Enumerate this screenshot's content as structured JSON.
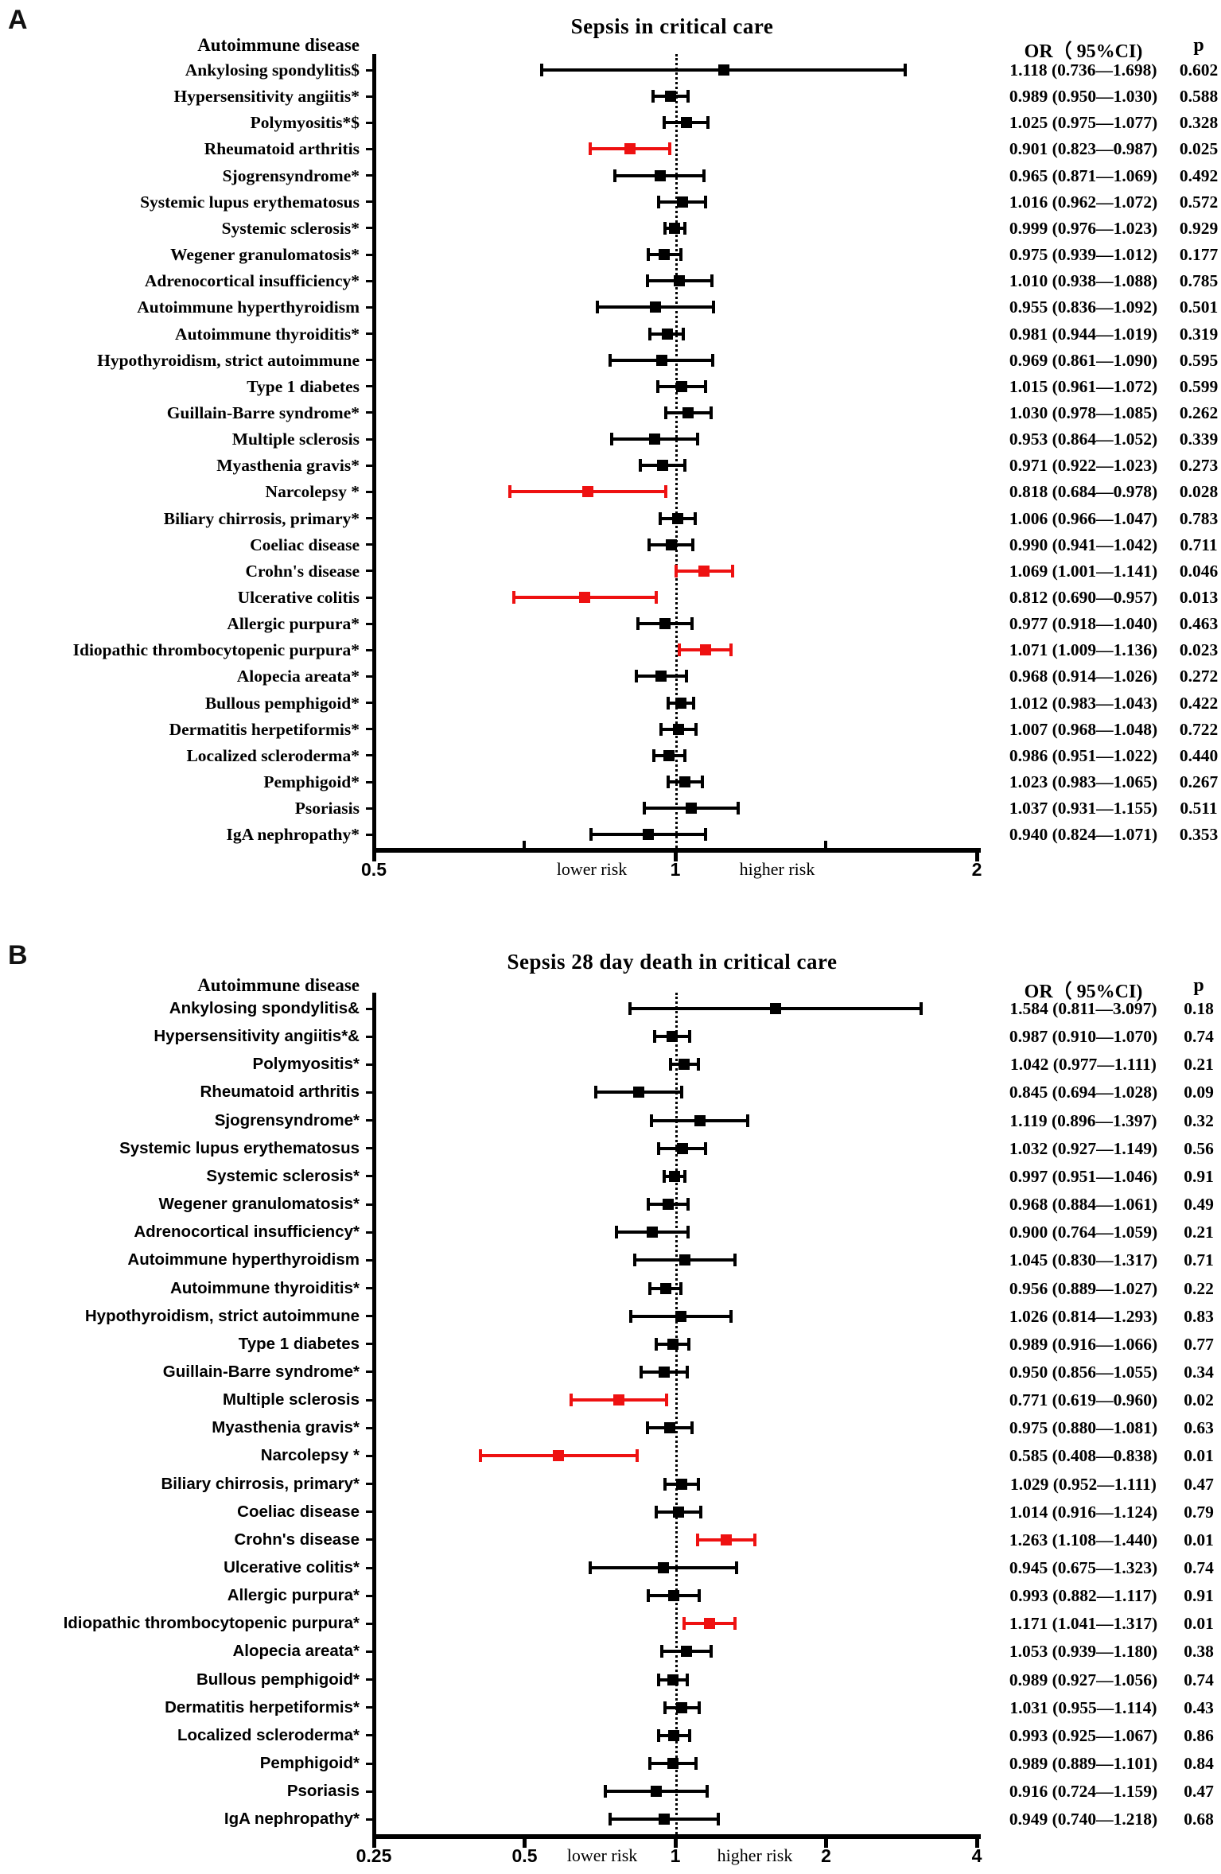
{
  "colors": {
    "normal": "#000000",
    "highlight": "#ee1111",
    "background": "#ffffff"
  },
  "chart_data": [
    {
      "type": "forest",
      "panel_letter": "A",
      "title": "Sepsis in critical care",
      "column_header": "Autoimmune disease",
      "or_header": "OR（ 95%CI)",
      "p_header": "p",
      "xscale": "log",
      "xlim": [
        0.5,
        2
      ],
      "ref_line": 1,
      "major_ticks": [
        {
          "value": 0.5,
          "label": "0.5"
        },
        {
          "value": 1,
          "label": "1"
        },
        {
          "value": 2,
          "label": "2"
        }
      ],
      "minor_ticks": [
        0.707,
        1.414
      ],
      "lower_risk_label": "lower risk",
      "higher_risk_label": "higher risk",
      "rows": [
        {
          "label": "Ankylosing spondylitis$",
          "or": 1.118,
          "lo": 0.736,
          "hi": 1.698,
          "ci": "1.118 (0.736—1.698)",
          "p": "0.602",
          "red": false
        },
        {
          "label": "Hypersensitivity angiitis*",
          "or": 0.989,
          "lo": 0.95,
          "hi": 1.03,
          "ci": "0.989 (0.950—1.030)",
          "p": "0.588",
          "red": false
        },
        {
          "label": "Polymyositis*$",
          "or": 1.025,
          "lo": 0.975,
          "hi": 1.077,
          "ci": "1.025 (0.975—1.077)",
          "p": "0.328",
          "red": false
        },
        {
          "label": "Rheumatoid arthritis",
          "or": 0.901,
          "lo": 0.823,
          "hi": 0.987,
          "ci": "0.901 (0.823—0.987)",
          "p": "0.025",
          "red": true
        },
        {
          "label": "Sjogrensyndrome*",
          "or": 0.965,
          "lo": 0.871,
          "hi": 1.069,
          "ci": "0.965 (0.871—1.069)",
          "p": "0.492",
          "red": false
        },
        {
          "label": "Systemic lupus erythematosus",
          "or": 1.016,
          "lo": 0.962,
          "hi": 1.072,
          "ci": "1.016 (0.962—1.072)",
          "p": "0.572",
          "red": false
        },
        {
          "label": "Systemic sclerosis*",
          "or": 0.999,
          "lo": 0.976,
          "hi": 1.023,
          "ci": "0.999 (0.976—1.023)",
          "p": "0.929",
          "red": false
        },
        {
          "label": "Wegener granulomatosis*",
          "or": 0.975,
          "lo": 0.939,
          "hi": 1.012,
          "ci": "0.975 (0.939—1.012)",
          "p": "0.177",
          "red": false
        },
        {
          "label": "Adrenocortical insufficiency*",
          "or": 1.01,
          "lo": 0.938,
          "hi": 1.088,
          "ci": "1.010 (0.938—1.088)",
          "p": "0.785",
          "red": false
        },
        {
          "label": "Autoimmune hyperthyroidism",
          "or": 0.955,
          "lo": 0.836,
          "hi": 1.092,
          "ci": "0.955 (0.836—1.092)",
          "p": "0.501",
          "red": false
        },
        {
          "label": "Autoimmune thyroiditis*",
          "or": 0.981,
          "lo": 0.944,
          "hi": 1.019,
          "ci": "0.981 (0.944—1.019)",
          "p": "0.319",
          "red": false
        },
        {
          "label": "Hypothyroidism, strict autoimmune",
          "or": 0.969,
          "lo": 0.861,
          "hi": 1.09,
          "ci": "0.969 (0.861—1.090)",
          "p": "0.595",
          "red": false
        },
        {
          "label": "Type 1 diabetes",
          "or": 1.015,
          "lo": 0.961,
          "hi": 1.072,
          "ci": "1.015 (0.961—1.072)",
          "p": "0.599",
          "red": false
        },
        {
          "label": "Guillain-Barre syndrome*",
          "or": 1.03,
          "lo": 0.978,
          "hi": 1.085,
          "ci": "1.030 (0.978—1.085)",
          "p": "0.262",
          "red": false
        },
        {
          "label": "Multiple sclerosis",
          "or": 0.953,
          "lo": 0.864,
          "hi": 1.052,
          "ci": "0.953 (0.864—1.052)",
          "p": "0.339",
          "red": false
        },
        {
          "label": "Myasthenia gravis*",
          "or": 0.971,
          "lo": 0.922,
          "hi": 1.023,
          "ci": "0.971 (0.922—1.023)",
          "p": "0.273",
          "red": false
        },
        {
          "label": "Narcolepsy *",
          "or": 0.818,
          "lo": 0.684,
          "hi": 0.978,
          "ci": "0.818 (0.684—0.978)",
          "p": "0.028",
          "red": true
        },
        {
          "label": "Biliary chirrosis, primary*",
          "or": 1.006,
          "lo": 0.966,
          "hi": 1.047,
          "ci": "1.006 (0.966—1.047)",
          "p": "0.783",
          "red": false
        },
        {
          "label": "Coeliac disease",
          "or": 0.99,
          "lo": 0.941,
          "hi": 1.042,
          "ci": "0.990 (0.941—1.042)",
          "p": "0.711",
          "red": false
        },
        {
          "label": "Crohn's disease",
          "or": 1.069,
          "lo": 1.001,
          "hi": 1.141,
          "ci": "1.069 (1.001—1.141)",
          "p": "0.046",
          "red": true
        },
        {
          "label": "Ulcerative colitis",
          "or": 0.812,
          "lo": 0.69,
          "hi": 0.957,
          "ci": "0.812 (0.690—0.957)",
          "p": "0.013",
          "red": true
        },
        {
          "label": "Allergic purpura*",
          "or": 0.977,
          "lo": 0.918,
          "hi": 1.04,
          "ci": "0.977 (0.918—1.040)",
          "p": "0.463",
          "red": false
        },
        {
          "label": "Idiopathic thrombocytopenic purpura*",
          "or": 1.071,
          "lo": 1.009,
          "hi": 1.136,
          "ci": "1.071 (1.009—1.136)",
          "p": "0.023",
          "red": true
        },
        {
          "label": "Alopecia areata*",
          "or": 0.968,
          "lo": 0.914,
          "hi": 1.026,
          "ci": "0.968 (0.914—1.026)",
          "p": "0.272",
          "red": false
        },
        {
          "label": "Bullous pemphigoid*",
          "or": 1.012,
          "lo": 0.983,
          "hi": 1.043,
          "ci": "1.012 (0.983—1.043)",
          "p": "0.422",
          "red": false
        },
        {
          "label": "Dermatitis herpetiformis*",
          "or": 1.007,
          "lo": 0.968,
          "hi": 1.048,
          "ci": "1.007 (0.968—1.048)",
          "p": "0.722",
          "red": false
        },
        {
          "label": "Localized scleroderma*",
          "or": 0.986,
          "lo": 0.951,
          "hi": 1.022,
          "ci": "0.986 (0.951—1.022)",
          "p": "0.440",
          "red": false
        },
        {
          "label": "Pemphigoid*",
          "or": 1.023,
          "lo": 0.983,
          "hi": 1.065,
          "ci": "1.023 (0.983—1.065)",
          "p": "0.267",
          "red": false
        },
        {
          "label": "Psoriasis",
          "or": 1.037,
          "lo": 0.931,
          "hi": 1.155,
          "ci": "1.037 (0.931—1.155)",
          "p": "0.511",
          "red": false
        },
        {
          "label": "IgA nephropathy*",
          "or": 0.94,
          "lo": 0.824,
          "hi": 1.071,
          "ci": "0.940 (0.824—1.071)",
          "p": "0.353",
          "red": false
        }
      ]
    },
    {
      "type": "forest",
      "panel_letter": "B",
      "title": "Sepsis 28 day death in critical care",
      "column_header": "Autoimmune disease",
      "or_header": "OR（ 95%CI)",
      "p_header": "p",
      "xscale": "log",
      "xlim": [
        0.25,
        4
      ],
      "ref_line": 1,
      "major_ticks": [
        {
          "value": 0.25,
          "label": "0.25"
        },
        {
          "value": 0.5,
          "label": "0.5"
        },
        {
          "value": 1,
          "label": "1"
        },
        {
          "value": 2,
          "label": "2"
        },
        {
          "value": 4,
          "label": "4"
        }
      ],
      "minor_ticks": [],
      "lower_risk_label": "lower risk",
      "higher_risk_label": "higher risk",
      "rows": [
        {
          "label": "Ankylosing spondylitis&",
          "or": 1.584,
          "lo": 0.811,
          "hi": 3.097,
          "ci": "1.584 (0.811—3.097)",
          "p": "0.18",
          "red": false
        },
        {
          "label": "Hypersensitivity angiitis*&",
          "or": 0.987,
          "lo": 0.91,
          "hi": 1.07,
          "ci": "0.987 (0.910—1.070)",
          "p": "0.74",
          "red": false
        },
        {
          "label": "Polymyositis*",
          "or": 1.042,
          "lo": 0.977,
          "hi": 1.111,
          "ci": "1.042 (0.977—1.111)",
          "p": "0.21",
          "red": false
        },
        {
          "label": "Rheumatoid arthritis",
          "or": 0.845,
          "lo": 0.694,
          "hi": 1.028,
          "ci": "0.845 (0.694—1.028)",
          "p": "0.09",
          "red": false
        },
        {
          "label": "Sjogrensyndrome*",
          "or": 1.119,
          "lo": 0.896,
          "hi": 1.397,
          "ci": "1.119 (0.896—1.397)",
          "p": "0.32",
          "red": false
        },
        {
          "label": "Systemic lupus erythematosus",
          "or": 1.032,
          "lo": 0.927,
          "hi": 1.149,
          "ci": "1.032 (0.927—1.149)",
          "p": "0.56",
          "red": false
        },
        {
          "label": "Systemic sclerosis*",
          "or": 0.997,
          "lo": 0.951,
          "hi": 1.046,
          "ci": "0.997 (0.951—1.046)",
          "p": "0.91",
          "red": false
        },
        {
          "label": "Wegener granulomatosis*",
          "or": 0.968,
          "lo": 0.884,
          "hi": 1.061,
          "ci": "0.968 (0.884—1.061)",
          "p": "0.49",
          "red": false
        },
        {
          "label": "Adrenocortical insufficiency*",
          "or": 0.9,
          "lo": 0.764,
          "hi": 1.059,
          "ci": "0.900 (0.764—1.059)",
          "p": "0.21",
          "red": false
        },
        {
          "label": "Autoimmune hyperthyroidism",
          "or": 1.045,
          "lo": 0.83,
          "hi": 1.317,
          "ci": "1.045 (0.830—1.317)",
          "p": "0.71",
          "red": false
        },
        {
          "label": "Autoimmune thyroiditis*",
          "or": 0.956,
          "lo": 0.889,
          "hi": 1.027,
          "ci": "0.956 (0.889—1.027)",
          "p": "0.22",
          "red": false
        },
        {
          "label": "Hypothyroidism, strict autoimmune",
          "or": 1.026,
          "lo": 0.814,
          "hi": 1.293,
          "ci": "1.026 (0.814—1.293)",
          "p": "0.83",
          "red": false
        },
        {
          "label": "Type 1 diabetes",
          "or": 0.989,
          "lo": 0.916,
          "hi": 1.066,
          "ci": "0.989 (0.916—1.066)",
          "p": "0.77",
          "red": false
        },
        {
          "label": "Guillain-Barre syndrome*",
          "or": 0.95,
          "lo": 0.856,
          "hi": 1.055,
          "ci": "0.950 (0.856—1.055)",
          "p": "0.34",
          "red": false
        },
        {
          "label": "Multiple sclerosis",
          "or": 0.771,
          "lo": 0.619,
          "hi": 0.96,
          "ci": "0.771 (0.619—0.960)",
          "p": "0.02",
          "red": true
        },
        {
          "label": "Myasthenia gravis*",
          "or": 0.975,
          "lo": 0.88,
          "hi": 1.081,
          "ci": "0.975 (0.880—1.081)",
          "p": "0.63",
          "red": false
        },
        {
          "label": "Narcolepsy *",
          "or": 0.585,
          "lo": 0.408,
          "hi": 0.838,
          "ci": "0.585 (0.408—0.838)",
          "p": "0.01",
          "red": true
        },
        {
          "label": "Biliary chirrosis, primary*",
          "or": 1.029,
          "lo": 0.952,
          "hi": 1.111,
          "ci": "1.029 (0.952—1.111)",
          "p": "0.47",
          "red": false
        },
        {
          "label": "Coeliac disease",
          "or": 1.014,
          "lo": 0.916,
          "hi": 1.124,
          "ci": "1.014 (0.916—1.124)",
          "p": "0.79",
          "red": false
        },
        {
          "label": "Crohn's disease",
          "or": 1.263,
          "lo": 1.108,
          "hi": 1.44,
          "ci": "1.263 (1.108—1.440)",
          "p": "0.01",
          "red": true
        },
        {
          "label": "Ulcerative colitis*",
          "or": 0.945,
          "lo": 0.675,
          "hi": 1.323,
          "ci": "0.945 (0.675—1.323)",
          "p": "0.74",
          "red": false
        },
        {
          "label": "Allergic purpura*",
          "or": 0.993,
          "lo": 0.882,
          "hi": 1.117,
          "ci": "0.993 (0.882—1.117)",
          "p": "0.91",
          "red": false
        },
        {
          "label": "Idiopathic thrombocytopenic purpura*",
          "or": 1.171,
          "lo": 1.041,
          "hi": 1.317,
          "ci": "1.171 (1.041—1.317)",
          "p": "0.01",
          "red": true
        },
        {
          "label": "Alopecia areata*",
          "or": 1.053,
          "lo": 0.939,
          "hi": 1.18,
          "ci": "1.053 (0.939—1.180)",
          "p": "0.38",
          "red": false
        },
        {
          "label": "Bullous pemphigoid*",
          "or": 0.989,
          "lo": 0.927,
          "hi": 1.056,
          "ci": "0.989 (0.927—1.056)",
          "p": "0.74",
          "red": false
        },
        {
          "label": "Dermatitis herpetiformis*",
          "or": 1.031,
          "lo": 0.955,
          "hi": 1.114,
          "ci": "1.031 (0.955—1.114)",
          "p": "0.43",
          "red": false
        },
        {
          "label": "Localized scleroderma*",
          "or": 0.993,
          "lo": 0.925,
          "hi": 1.067,
          "ci": "0.993 (0.925—1.067)",
          "p": "0.86",
          "red": false
        },
        {
          "label": "Pemphigoid*",
          "or": 0.989,
          "lo": 0.889,
          "hi": 1.101,
          "ci": "0.989 (0.889—1.101)",
          "p": "0.84",
          "red": false
        },
        {
          "label": "Psoriasis",
          "or": 0.916,
          "lo": 0.724,
          "hi": 1.159,
          "ci": "0.916 (0.724—1.159)",
          "p": "0.47",
          "red": false
        },
        {
          "label": "IgA nephropathy*",
          "or": 0.949,
          "lo": 0.74,
          "hi": 1.218,
          "ci": "0.949 (0.740—1.218)",
          "p": "0.68",
          "red": false
        }
      ]
    }
  ]
}
